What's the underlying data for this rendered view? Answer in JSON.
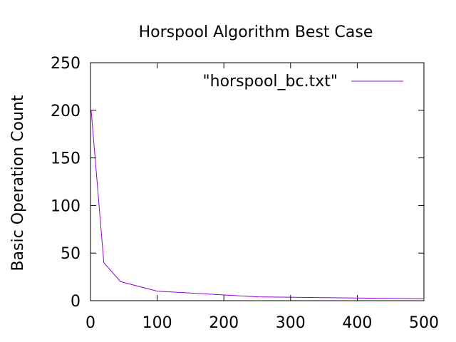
{
  "chart_data": {
    "type": "line",
    "title": "Horspool Algorithm Best Case",
    "xlabel": "",
    "ylabel": "Basic Operation Count",
    "xlim": [
      0,
      500
    ],
    "ylim": [
      0,
      250
    ],
    "x_ticks": [
      0,
      100,
      200,
      300,
      400,
      500
    ],
    "y_ticks": [
      0,
      50,
      100,
      150,
      200,
      250
    ],
    "grid": false,
    "legend_position": "top-right",
    "series": [
      {
        "name": "\"horspool_bc.txt\"",
        "color": "#9400d3",
        "x": [
          1,
          20,
          45,
          100,
          250,
          500
        ],
        "y": [
          200,
          40,
          20,
          10,
          4,
          2
        ]
      }
    ]
  }
}
